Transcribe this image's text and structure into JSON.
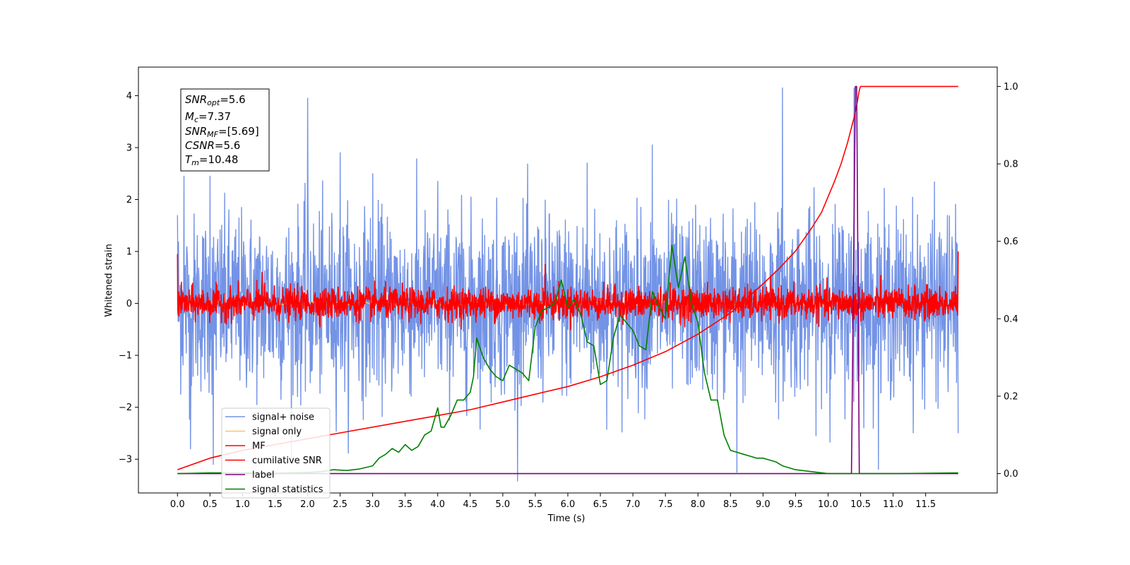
{
  "chart_data": {
    "type": "line",
    "xlabel": "Time (s)",
    "ylabel": "Whitened strain",
    "xlim": [
      -0.6,
      12.6
    ],
    "ylim": [
      -3.65,
      4.55
    ],
    "y2lim": [
      -0.05,
      1.05
    ],
    "x_ticks": [
      "0.0",
      "0.5",
      "1.0",
      "1.5",
      "2.0",
      "2.5",
      "3.0",
      "3.5",
      "4.0",
      "4.5",
      "5.0",
      "5.5",
      "6.0",
      "6.5",
      "7.0",
      "7.5",
      "8.0",
      "8.5",
      "9.0",
      "9.5",
      "10.0",
      "10.5",
      "11.0",
      "11.5"
    ],
    "y_ticks": [
      "4",
      "3",
      "2",
      "1",
      "0",
      "−1",
      "−2",
      "−3"
    ],
    "y2_ticks": [
      "1.0",
      "0.8",
      "0.6",
      "0.4",
      "0.2",
      "0.0"
    ],
    "grid": false,
    "legend_position": "lower-left",
    "annotation": {
      "lines": [
        {
          "main": "SNR",
          "sub": "opt",
          "rest": "=5.6"
        },
        {
          "main": "M",
          "sub": "c",
          "rest": "=7.37"
        },
        {
          "main": "SNR",
          "sub": "MF",
          "rest": "=[5.69]"
        },
        {
          "main": "CSNR",
          "sub": "",
          "rest": "=5.6"
        },
        {
          "main": "T",
          "sub": "m",
          "rest": "=10.48"
        }
      ]
    },
    "series": [
      {
        "name": "signal+ noise",
        "color": "#7393e6",
        "axis": "left",
        "kind": "noise",
        "x_range": [
          0,
          12.0
        ],
        "std": 0.85,
        "peaks": [
          [
            0.0,
            1.7
          ],
          [
            0.1,
            2.45
          ],
          [
            0.5,
            2.45
          ],
          [
            0.55,
            -3.1
          ],
          [
            0.2,
            -2.8
          ],
          [
            2.0,
            3.95
          ],
          [
            2.5,
            2.9
          ],
          [
            3.0,
            2.5
          ],
          [
            4.0,
            2.35
          ],
          [
            6.3,
            2.7
          ],
          [
            7.3,
            3.05
          ],
          [
            8.6,
            -3.25
          ],
          [
            9.3,
            4.15
          ],
          [
            10.4,
            4.15
          ],
          [
            10.45,
            -1.5
          ],
          [
            12.0,
            -2.5
          ]
        ]
      },
      {
        "name": "signal only",
        "color": "#f5c56a",
        "axis": "left",
        "kind": "chirp",
        "x_range": [
          0,
          10.48
        ]
      },
      {
        "name": "MF",
        "color": "#ff0000",
        "axis": "left",
        "kind": "noise",
        "x_range": [
          0,
          12.0
        ],
        "std": 0.15,
        "peaks": [
          [
            0.0,
            0.95
          ],
          [
            1.3,
            0.6
          ],
          [
            5.65,
            0.75
          ],
          [
            10.4,
            -0.3
          ],
          [
            12.0,
            1.0
          ]
        ]
      },
      {
        "name": "cumilative SNR",
        "color": "#ff0000",
        "axis": "right",
        "x": [
          0,
          0.5,
          1,
          1.5,
          2,
          2.5,
          3,
          3.5,
          4,
          4.5,
          5,
          5.5,
          6,
          6.5,
          7,
          7.5,
          8,
          8.5,
          9,
          9.25,
          9.5,
          9.75,
          9.9,
          10,
          10.1,
          10.2,
          10.3,
          10.4,
          10.45,
          10.48,
          10.5,
          11,
          11.5,
          12.0
        ],
        "y": [
          0.01,
          0.04,
          0.06,
          0.075,
          0.09,
          0.105,
          0.12,
          0.135,
          0.15,
          0.165,
          0.185,
          0.205,
          0.225,
          0.25,
          0.28,
          0.315,
          0.36,
          0.415,
          0.49,
          0.53,
          0.575,
          0.635,
          0.675,
          0.715,
          0.755,
          0.8,
          0.855,
          0.92,
          0.96,
          0.99,
          1.0,
          1.0,
          1.0,
          1.0
        ]
      },
      {
        "name": "label",
        "color": "#800080",
        "axis": "right",
        "x": [
          0,
          10.36,
          10.42,
          10.44,
          10.48,
          10.5,
          12.0
        ],
        "y": [
          0,
          0,
          1.0,
          1.0,
          0,
          0,
          0
        ]
      },
      {
        "name": "signal statistics",
        "color": "#008000",
        "axis": "right",
        "x": [
          0,
          0.5,
          1,
          1.5,
          2,
          2.2,
          2.4,
          2.6,
          2.8,
          3.0,
          3.1,
          3.2,
          3.3,
          3.4,
          3.5,
          3.6,
          3.7,
          3.8,
          3.9,
          4.0,
          4.05,
          4.1,
          4.2,
          4.3,
          4.4,
          4.5,
          4.55,
          4.6,
          4.7,
          4.8,
          4.9,
          5.0,
          5.1,
          5.2,
          5.3,
          5.4,
          5.5,
          5.6,
          5.7,
          5.8,
          5.9,
          6.0,
          6.1,
          6.2,
          6.3,
          6.4,
          6.5,
          6.6,
          6.7,
          6.8,
          6.9,
          7.0,
          7.1,
          7.2,
          7.3,
          7.4,
          7.5,
          7.6,
          7.7,
          7.8,
          7.9,
          8.0,
          8.1,
          8.2,
          8.3,
          8.4,
          8.5,
          8.6,
          8.7,
          8.8,
          8.9,
          9.0,
          9.1,
          9.2,
          9.3,
          9.5,
          10.0,
          10.5,
          11.0,
          12.0
        ],
        "y": [
          0.0,
          0.002,
          0.002,
          0.001,
          0.003,
          0.005,
          0.01,
          0.008,
          0.012,
          0.02,
          0.04,
          0.05,
          0.065,
          0.055,
          0.075,
          0.06,
          0.07,
          0.1,
          0.11,
          0.17,
          0.12,
          0.12,
          0.15,
          0.19,
          0.19,
          0.21,
          0.25,
          0.35,
          0.3,
          0.27,
          0.25,
          0.24,
          0.28,
          0.27,
          0.26,
          0.24,
          0.38,
          0.42,
          0.43,
          0.44,
          0.5,
          0.43,
          0.45,
          0.41,
          0.34,
          0.33,
          0.23,
          0.24,
          0.35,
          0.41,
          0.39,
          0.37,
          0.33,
          0.32,
          0.47,
          0.43,
          0.4,
          0.59,
          0.48,
          0.56,
          0.44,
          0.39,
          0.26,
          0.19,
          0.19,
          0.1,
          0.06,
          0.055,
          0.05,
          0.045,
          0.04,
          0.04,
          0.035,
          0.03,
          0.02,
          0.01,
          0.0,
          0.0,
          0.0,
          0.002
        ]
      }
    ]
  }
}
